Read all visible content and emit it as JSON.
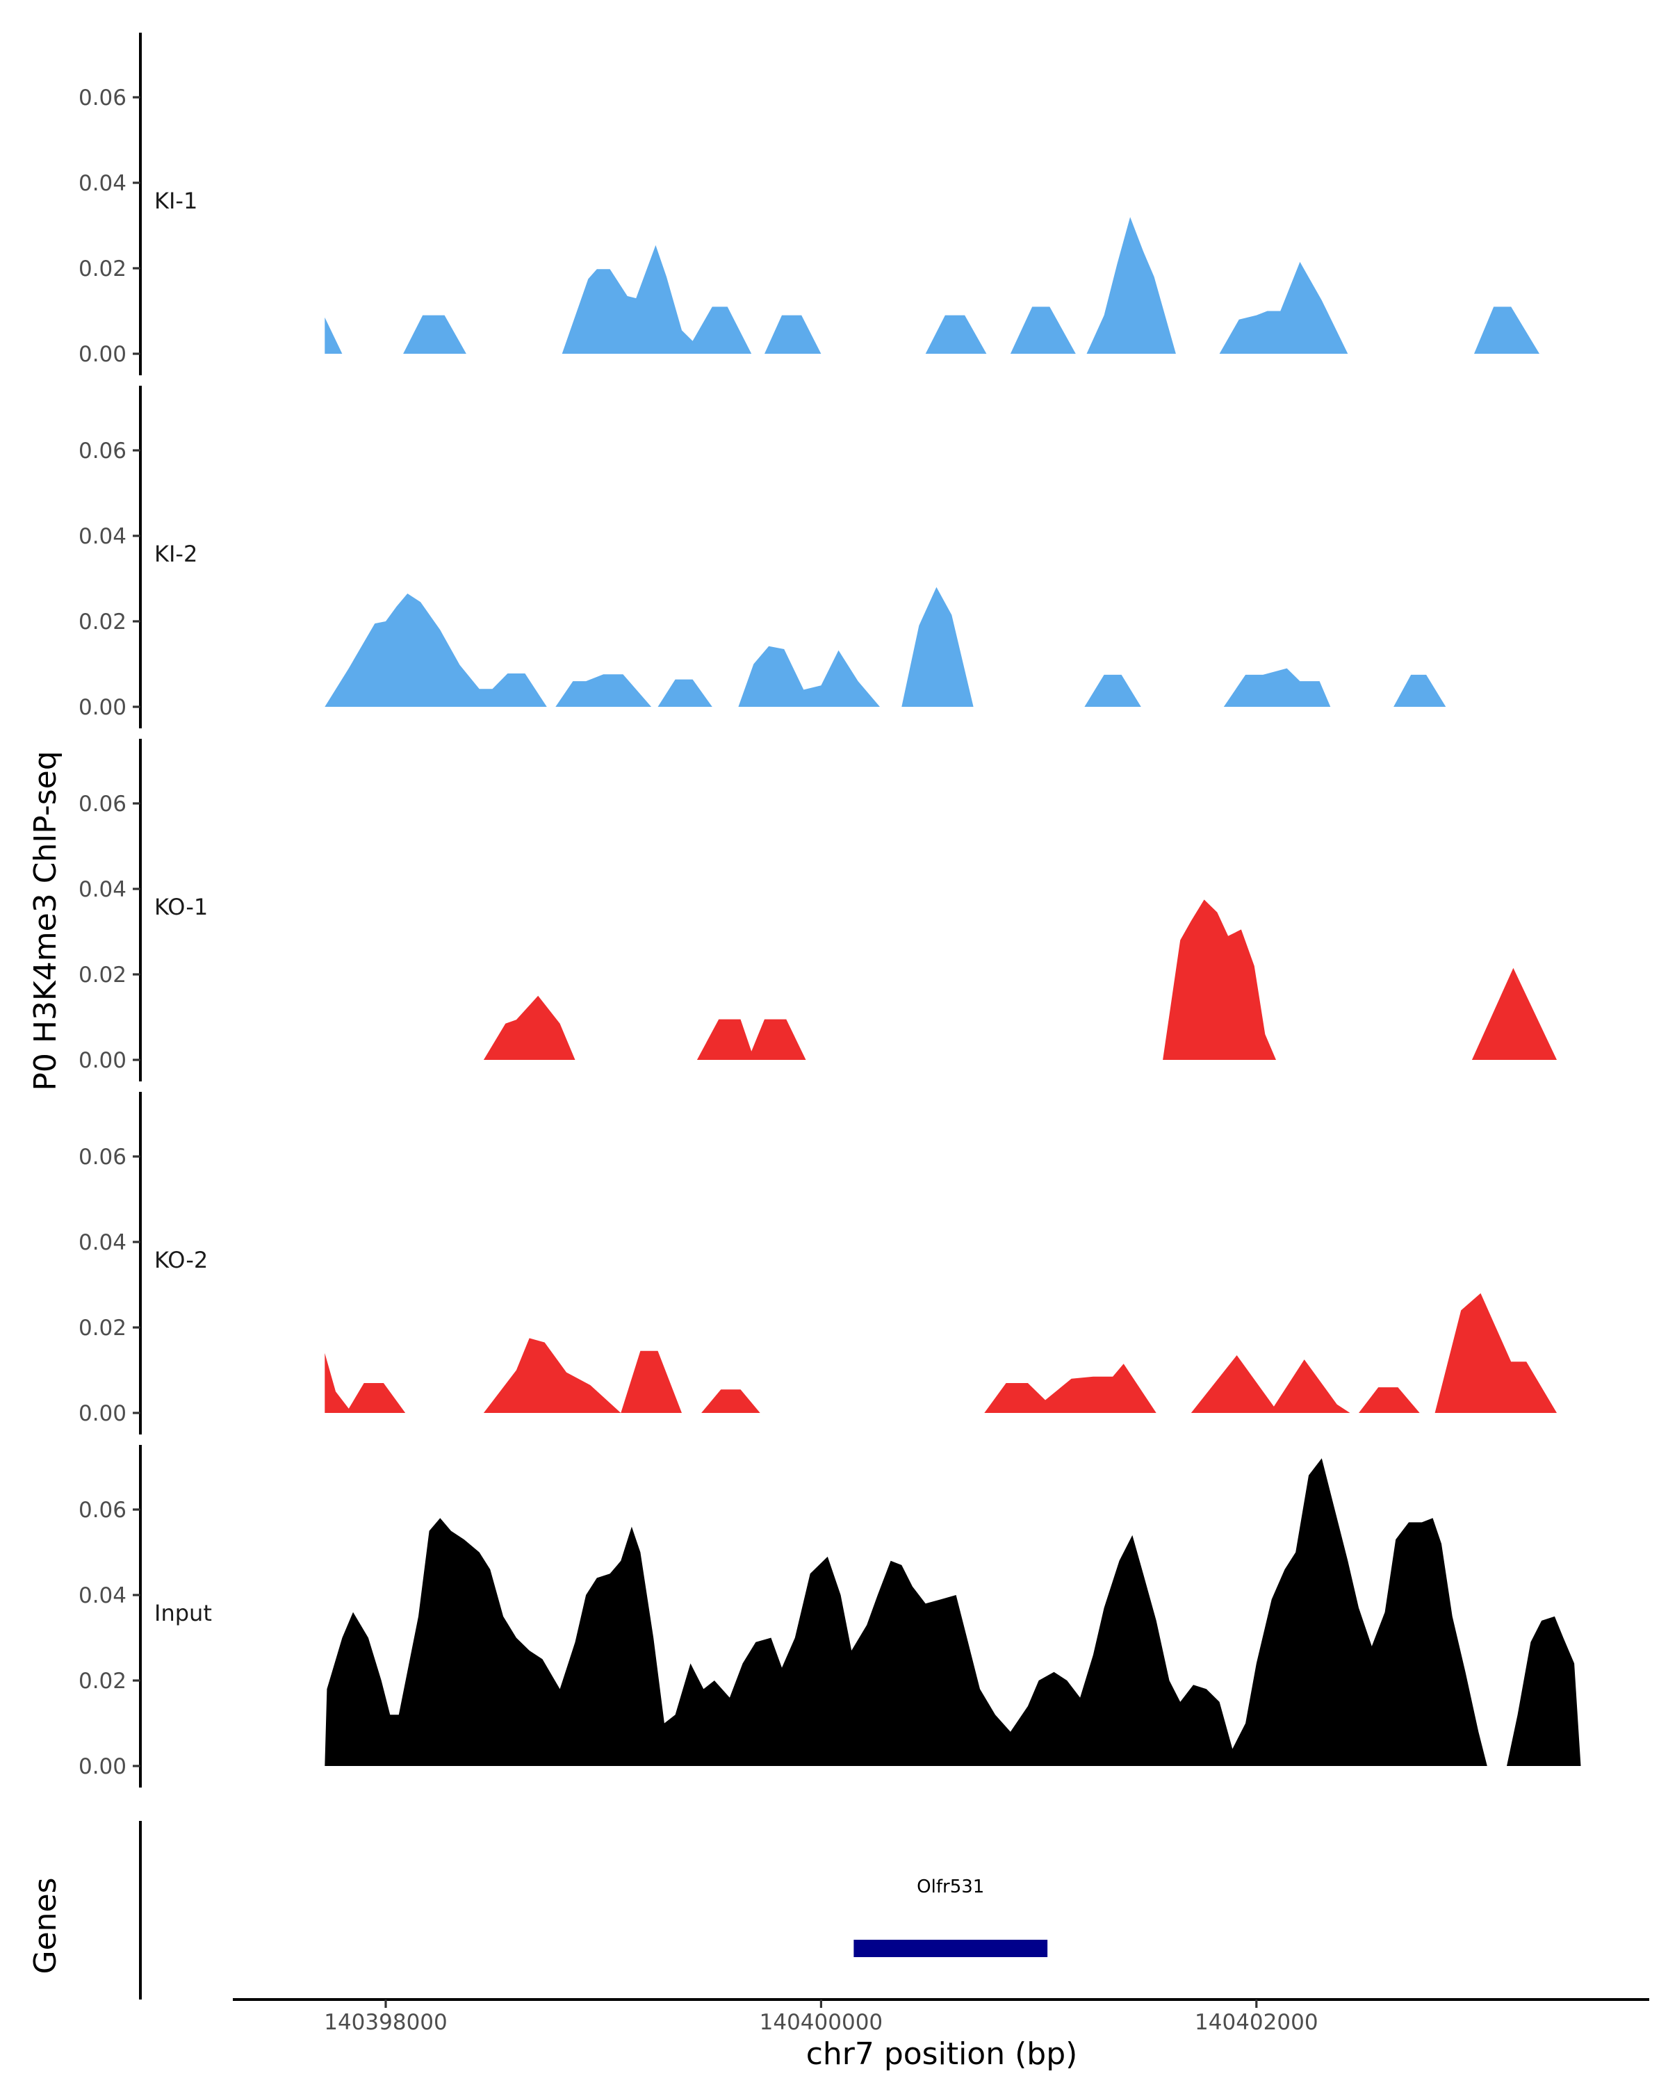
{
  "chart_data": {
    "type": "area",
    "y_title": "P0 H3K4me3 ChIP-seq",
    "x_title": "chr7 position (bp)",
    "x_range": [
      140397370,
      140403840
    ],
    "x_ticks": [
      {
        "value": 140398000,
        "label": "140398000"
      },
      {
        "value": 140400000,
        "label": "140400000"
      },
      {
        "value": 140402000,
        "label": "140402000"
      }
    ],
    "y_range": [
      0,
      0.0755
    ],
    "y_ticks": [
      {
        "value": 0.0,
        "label": "0.00"
      },
      {
        "value": 0.02,
        "label": "0.02"
      },
      {
        "value": 0.04,
        "label": "0.04"
      },
      {
        "value": 0.06,
        "label": "0.06"
      }
    ],
    "tracks": [
      {
        "name": "KI-1",
        "label": "KI-1",
        "color": "#5DABEC",
        "points": [
          [
            140397720,
            0
          ],
          [
            140397720,
            0.0085
          ],
          [
            140397800,
            0
          ],
          [
            140398080,
            0
          ],
          [
            140398170,
            0.009
          ],
          [
            140398270,
            0.009
          ],
          [
            140398370,
            0
          ],
          [
            140398810,
            0
          ],
          [
            140398930,
            0.0175
          ],
          [
            140398970,
            0.0198
          ],
          [
            140399030,
            0.0198
          ],
          [
            140399110,
            0.0135
          ],
          [
            140399150,
            0.013
          ],
          [
            140399190,
            0.0185
          ],
          [
            140399240,
            0.0254
          ],
          [
            140399290,
            0.018
          ],
          [
            140399360,
            0.0055
          ],
          [
            140399410,
            0.003
          ],
          [
            140399500,
            0.011
          ],
          [
            140399570,
            0.011
          ],
          [
            140399680,
            0
          ],
          [
            140399740,
            0
          ],
          [
            140399820,
            0.009
          ],
          [
            140399910,
            0.009
          ],
          [
            140400000,
            0
          ],
          [
            140400480,
            0
          ],
          [
            140400570,
            0.009
          ],
          [
            140400660,
            0.009
          ],
          [
            140400760,
            0
          ],
          [
            140400870,
            0
          ],
          [
            140400970,
            0.011
          ],
          [
            140401050,
            0.011
          ],
          [
            140401170,
            0
          ],
          [
            140401220,
            0
          ],
          [
            140401300,
            0.009
          ],
          [
            140401360,
            0.021
          ],
          [
            140401420,
            0.032
          ],
          [
            140401480,
            0.024
          ],
          [
            140401530,
            0.018
          ],
          [
            140401630,
            0
          ],
          [
            140401830,
            0
          ],
          [
            140401920,
            0.008
          ],
          [
            140402000,
            0.009
          ],
          [
            140402050,
            0.01
          ],
          [
            140402110,
            0.01
          ],
          [
            140402200,
            0.0215
          ],
          [
            140402300,
            0.0125
          ],
          [
            140402420,
            0
          ],
          [
            140403000,
            0
          ],
          [
            140403090,
            0.011
          ],
          [
            140403170,
            0.011
          ],
          [
            140403300,
            0
          ]
        ]
      },
      {
        "name": "KI-2",
        "label": "KI-2",
        "color": "#5DABEC",
        "points": [
          [
            140397720,
            0
          ],
          [
            140397830,
            0.009
          ],
          [
            140397950,
            0.0195
          ],
          [
            140398000,
            0.02
          ],
          [
            140398050,
            0.0235
          ],
          [
            140398100,
            0.0265
          ],
          [
            140398160,
            0.0245
          ],
          [
            140398250,
            0.018
          ],
          [
            140398340,
            0.0098
          ],
          [
            140398430,
            0.0042
          ],
          [
            140398490,
            0.0042
          ],
          [
            140398560,
            0.0078
          ],
          [
            140398640,
            0.0078
          ],
          [
            140398740,
            0
          ],
          [
            140398780,
            0
          ],
          [
            140398860,
            0.006
          ],
          [
            140398920,
            0.006
          ],
          [
            140399000,
            0.0076
          ],
          [
            140399090,
            0.0076
          ],
          [
            140399220,
            0
          ],
          [
            140399250,
            0
          ],
          [
            140399330,
            0.0064
          ],
          [
            140399410,
            0.0064
          ],
          [
            140399500,
            0
          ],
          [
            140399620,
            0
          ],
          [
            140399690,
            0.01
          ],
          [
            140399760,
            0.0142
          ],
          [
            140399830,
            0.0135
          ],
          [
            140399920,
            0.004
          ],
          [
            140400000,
            0.005
          ],
          [
            140400080,
            0.0132
          ],
          [
            140400170,
            0.006
          ],
          [
            140400270,
            0
          ],
          [
            140400370,
            0
          ],
          [
            140400450,
            0.019
          ],
          [
            140400530,
            0.028
          ],
          [
            140400600,
            0.0215
          ],
          [
            140400700,
            0
          ],
          [
            140401210,
            0
          ],
          [
            140401300,
            0.0075
          ],
          [
            140401380,
            0.0075
          ],
          [
            140401470,
            0
          ],
          [
            140401850,
            0
          ],
          [
            140401950,
            0.0075
          ],
          [
            140402030,
            0.0075
          ],
          [
            140402140,
            0.009
          ],
          [
            140402200,
            0.006
          ],
          [
            140402290,
            0.006
          ],
          [
            140402340,
            0
          ],
          [
            140402630,
            0
          ],
          [
            140402710,
            0.0075
          ],
          [
            140402780,
            0.0075
          ],
          [
            140402870,
            0
          ]
        ]
      },
      {
        "name": "KO-1",
        "label": "KO-1",
        "color": "#EE2C2C",
        "points": [
          [
            140398450,
            0
          ],
          [
            140398550,
            0.0085
          ],
          [
            140398600,
            0.0094
          ],
          [
            140398700,
            0.015
          ],
          [
            140398800,
            0.0085
          ],
          [
            140398870,
            0
          ],
          [
            140399430,
            0
          ],
          [
            140399530,
            0.0095
          ],
          [
            140399630,
            0.0095
          ],
          [
            140399680,
            0.002
          ],
          [
            140399740,
            0.0095
          ],
          [
            140399840,
            0.0095
          ],
          [
            140399930,
            0
          ],
          [
            140401570,
            0
          ],
          [
            140401650,
            0.028
          ],
          [
            140401700,
            0.0325
          ],
          [
            140401760,
            0.0375
          ],
          [
            140401820,
            0.0345
          ],
          [
            140401870,
            0.029
          ],
          [
            140401930,
            0.0305
          ],
          [
            140401990,
            0.022
          ],
          [
            140402040,
            0.006
          ],
          [
            140402090,
            0
          ],
          [
            140402990,
            0
          ],
          [
            140403180,
            0.0215
          ],
          [
            140403380,
            0
          ]
        ]
      },
      {
        "name": "KO-2",
        "label": "KO-2",
        "color": "#EE2C2C",
        "points": [
          [
            140397720,
            0
          ],
          [
            140397720,
            0.014
          ],
          [
            140397770,
            0.005
          ],
          [
            140397830,
            0.001
          ],
          [
            140397900,
            0.007
          ],
          [
            140397990,
            0.007
          ],
          [
            140398090,
            0
          ],
          [
            140398450,
            0
          ],
          [
            140398600,
            0.01
          ],
          [
            140398660,
            0.0175
          ],
          [
            140398730,
            0.0165
          ],
          [
            140398830,
            0.0095
          ],
          [
            140398940,
            0.0065
          ],
          [
            140399080,
            0
          ],
          [
            140399080,
            0
          ],
          [
            140399170,
            0.0145
          ],
          [
            140399250,
            0.0145
          ],
          [
            140399360,
            0
          ],
          [
            140399450,
            0
          ],
          [
            140399540,
            0.0055
          ],
          [
            140399630,
            0.0055
          ],
          [
            140399720,
            0
          ],
          [
            140400750,
            0
          ],
          [
            140400850,
            0.007
          ],
          [
            140400950,
            0.007
          ],
          [
            140401030,
            0.003
          ],
          [
            140401150,
            0.008
          ],
          [
            140401250,
            0.0085
          ],
          [
            140401340,
            0.0085
          ],
          [
            140401390,
            0.0115
          ],
          [
            140401540,
            0
          ],
          [
            140401700,
            0
          ],
          [
            140401910,
            0.0135
          ],
          [
            140402080,
            0.0015
          ],
          [
            140402220,
            0.0125
          ],
          [
            140402370,
            0.002
          ],
          [
            140402430,
            0
          ],
          [
            140402470,
            0
          ],
          [
            140402560,
            0.006
          ],
          [
            140402650,
            0.006
          ],
          [
            140402750,
            0
          ],
          [
            140402820,
            0
          ],
          [
            140402940,
            0.024
          ],
          [
            140403030,
            0.028
          ],
          [
            140403100,
            0.02
          ],
          [
            140403170,
            0.012
          ],
          [
            140403240,
            0.012
          ],
          [
            140403380,
            0
          ]
        ]
      },
      {
        "name": "Input",
        "label": "Input",
        "color": "#000000",
        "points": [
          [
            140397720,
            0
          ],
          [
            140397730,
            0.018
          ],
          [
            140397800,
            0.03
          ],
          [
            140397850,
            0.036
          ],
          [
            140397920,
            0.03
          ],
          [
            140397980,
            0.02
          ],
          [
            140398020,
            0.012
          ],
          [
            140398060,
            0.012
          ],
          [
            140398150,
            0.035
          ],
          [
            140398200,
            0.055
          ],
          [
            140398250,
            0.058
          ],
          [
            140398300,
            0.055
          ],
          [
            140398360,
            0.053
          ],
          [
            140398430,
            0.05
          ],
          [
            140398480,
            0.046
          ],
          [
            140398540,
            0.035
          ],
          [
            140398600,
            0.03
          ],
          [
            140398660,
            0.027
          ],
          [
            140398720,
            0.025
          ],
          [
            140398800,
            0.018
          ],
          [
            140398870,
            0.029
          ],
          [
            140398920,
            0.04
          ],
          [
            140398970,
            0.044
          ],
          [
            140399030,
            0.045
          ],
          [
            140399080,
            0.048
          ],
          [
            140399130,
            0.056
          ],
          [
            140399170,
            0.05
          ],
          [
            140399230,
            0.03
          ],
          [
            140399280,
            0.01
          ],
          [
            140399330,
            0.012
          ],
          [
            140399400,
            0.024
          ],
          [
            140399460,
            0.018
          ],
          [
            140399510,
            0.02
          ],
          [
            140399580,
            0.016
          ],
          [
            140399640,
            0.024
          ],
          [
            140399700,
            0.029
          ],
          [
            140399770,
            0.03
          ],
          [
            140399820,
            0.023
          ],
          [
            140399880,
            0.03
          ],
          [
            140399950,
            0.045
          ],
          [
            140400030,
            0.049
          ],
          [
            140400090,
            0.04
          ],
          [
            140400140,
            0.027
          ],
          [
            140400210,
            0.033
          ],
          [
            140400260,
            0.04
          ],
          [
            140400320,
            0.048
          ],
          [
            140400370,
            0.047
          ],
          [
            140400420,
            0.042
          ],
          [
            140400480,
            0.038
          ],
          [
            140400550,
            0.039
          ],
          [
            140400620,
            0.04
          ],
          [
            140400680,
            0.028
          ],
          [
            140400730,
            0.018
          ],
          [
            140400800,
            0.012
          ],
          [
            140400870,
            0.008
          ],
          [
            140400950,
            0.014
          ],
          [
            140401000,
            0.02
          ],
          [
            140401070,
            0.022
          ],
          [
            140401130,
            0.02
          ],
          [
            140401190,
            0.016
          ],
          [
            140401250,
            0.026
          ],
          [
            140401300,
            0.037
          ],
          [
            140401370,
            0.048
          ],
          [
            140401430,
            0.054
          ],
          [
            140401480,
            0.045
          ],
          [
            140401540,
            0.034
          ],
          [
            140401600,
            0.02
          ],
          [
            140401650,
            0.015
          ],
          [
            140401710,
            0.019
          ],
          [
            140401770,
            0.018
          ],
          [
            140401830,
            0.015
          ],
          [
            140401890,
            0.004
          ],
          [
            140401950,
            0.01
          ],
          [
            140402000,
            0.024
          ],
          [
            140402070,
            0.039
          ],
          [
            140402130,
            0.046
          ],
          [
            140402180,
            0.05
          ],
          [
            140402240,
            0.068
          ],
          [
            140402300,
            0.072
          ],
          [
            140402350,
            0.062
          ],
          [
            140402420,
            0.048
          ],
          [
            140402470,
            0.037
          ],
          [
            140402530,
            0.028
          ],
          [
            140402590,
            0.036
          ],
          [
            140402640,
            0.053
          ],
          [
            140402700,
            0.057
          ],
          [
            140402760,
            0.057
          ],
          [
            140402810,
            0.058
          ],
          [
            140402850,
            0.052
          ],
          [
            140402900,
            0.035
          ],
          [
            140402960,
            0.022
          ],
          [
            140403020,
            0.008
          ],
          [
            140403060,
            0
          ]
        ],
        "points_b": [
          [
            140403150,
            0
          ],
          [
            140403200,
            0.012
          ],
          [
            140403260,
            0.029
          ],
          [
            140403310,
            0.034
          ],
          [
            140403370,
            0.035
          ],
          [
            140403410,
            0.03
          ],
          [
            140403460,
            0.024
          ],
          [
            140403490,
            0
          ]
        ]
      }
    ],
    "genes_title": "Genes",
    "genes": [
      {
        "name": "Olfr531",
        "label": "Olfr531",
        "start": 140400150,
        "end": 140401040,
        "color": "#00008B"
      }
    ]
  }
}
